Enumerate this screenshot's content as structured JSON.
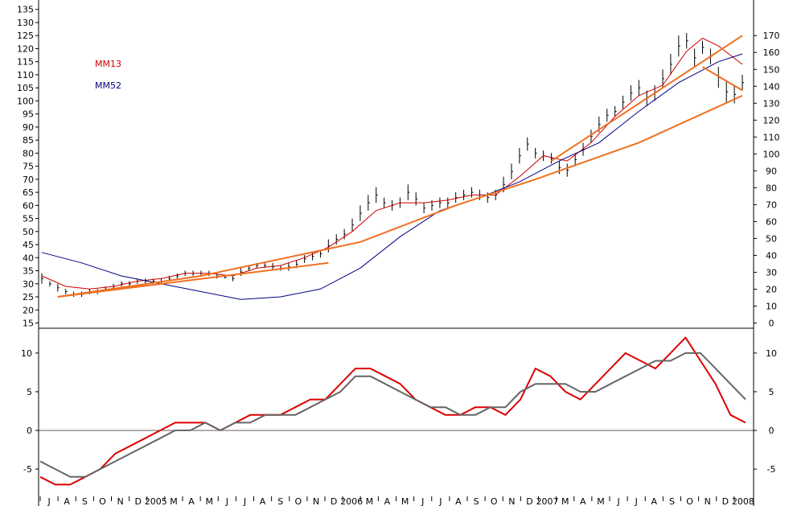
{
  "chart_data": {
    "type": "line",
    "main_panel": {
      "left_axis_ticks": [
        135,
        130,
        125,
        120,
        115,
        110,
        105,
        100,
        95,
        90,
        85,
        80,
        75,
        70,
        65,
        60,
        55,
        50,
        45,
        40,
        35,
        30,
        25,
        20,
        15
      ],
      "right_axis_ticks": [
        170,
        160,
        150,
        140,
        130,
        120,
        110,
        100,
        90,
        80,
        70,
        60,
        50,
        40,
        30,
        20,
        10,
        0
      ],
      "ylim": [
        13,
        138
      ],
      "legend": [
        {
          "name": "MM13",
          "color": "#cc0000"
        },
        {
          "name": "MM52",
          "color": "#000080"
        }
      ],
      "price_bars_weekly": [
        [
          0,
          30,
          34
        ],
        [
          2,
          29,
          31
        ],
        [
          4,
          27,
          30
        ],
        [
          6,
          26,
          28
        ],
        [
          8,
          25,
          27
        ],
        [
          10,
          25,
          27
        ],
        [
          12,
          26,
          28
        ],
        [
          14,
          26,
          28
        ],
        [
          16,
          27,
          29
        ],
        [
          18,
          28,
          30
        ],
        [
          20,
          29,
          31
        ],
        [
          22,
          29,
          31
        ],
        [
          24,
          30,
          32
        ],
        [
          26,
          30,
          32
        ],
        [
          28,
          30,
          32
        ],
        [
          30,
          30,
          32
        ],
        [
          32,
          31,
          33
        ],
        [
          34,
          32,
          34
        ],
        [
          36,
          33,
          35
        ],
        [
          38,
          33,
          35
        ],
        [
          40,
          33,
          35
        ],
        [
          42,
          33,
          35
        ],
        [
          44,
          32,
          34
        ],
        [
          46,
          32,
          33
        ],
        [
          48,
          31,
          33
        ],
        [
          50,
          33,
          36
        ],
        [
          52,
          35,
          37
        ],
        [
          54,
          36,
          38
        ],
        [
          56,
          36,
          38
        ],
        [
          58,
          35,
          38
        ],
        [
          60,
          35,
          37
        ],
        [
          62,
          35,
          38
        ],
        [
          64,
          36,
          39
        ],
        [
          66,
          38,
          41
        ],
        [
          68,
          39,
          42
        ],
        [
          70,
          40,
          43
        ],
        [
          72,
          42,
          47
        ],
        [
          74,
          45,
          49
        ],
        [
          76,
          47,
          51
        ],
        [
          78,
          50,
          55
        ],
        [
          80,
          54,
          60
        ],
        [
          82,
          58,
          64
        ],
        [
          84,
          61,
          67
        ],
        [
          86,
          59,
          63
        ],
        [
          88,
          58,
          62
        ],
        [
          90,
          59,
          63
        ],
        [
          92,
          62,
          68
        ],
        [
          94,
          60,
          65
        ],
        [
          96,
          57,
          61
        ],
        [
          98,
          58,
          62
        ],
        [
          100,
          59,
          63
        ],
        [
          102,
          59,
          63
        ],
        [
          104,
          61,
          65
        ],
        [
          106,
          62,
          66
        ],
        [
          108,
          63,
          67
        ],
        [
          110,
          62,
          66
        ],
        [
          112,
          61,
          65
        ],
        [
          114,
          62,
          66
        ],
        [
          116,
          65,
          71
        ],
        [
          118,
          70,
          76
        ],
        [
          120,
          76,
          82
        ],
        [
          122,
          81,
          86
        ],
        [
          124,
          78,
          82
        ],
        [
          126,
          77,
          81
        ],
        [
          128,
          76,
          80
        ],
        [
          130,
          72,
          77
        ],
        [
          132,
          71,
          76
        ],
        [
          134,
          75,
          80
        ],
        [
          136,
          79,
          84
        ],
        [
          138,
          84,
          89
        ],
        [
          140,
          88,
          94
        ],
        [
          142,
          92,
          97
        ],
        [
          144,
          94,
          98
        ],
        [
          146,
          97,
          102
        ],
        [
          148,
          100,
          106
        ],
        [
          150,
          102,
          108
        ],
        [
          152,
          98,
          104
        ],
        [
          154,
          100,
          106
        ],
        [
          156,
          105,
          112
        ],
        [
          158,
          110,
          118
        ],
        [
          160,
          117,
          125
        ],
        [
          162,
          120,
          126
        ],
        [
          164,
          113,
          120
        ],
        [
          166,
          118,
          123
        ],
        [
          168,
          114,
          120
        ],
        [
          170,
          105,
          113
        ],
        [
          172,
          99,
          108
        ],
        [
          174,
          99,
          106
        ],
        [
          176,
          104,
          110
        ]
      ],
      "ma13": [
        [
          0,
          33
        ],
        [
          6,
          29
        ],
        [
          12,
          28
        ],
        [
          18,
          29
        ],
        [
          24,
          31
        ],
        [
          30,
          32
        ],
        [
          36,
          34
        ],
        [
          42,
          34
        ],
        [
          48,
          33
        ],
        [
          54,
          36
        ],
        [
          60,
          37
        ],
        [
          66,
          40
        ],
        [
          72,
          44
        ],
        [
          78,
          50
        ],
        [
          84,
          58
        ],
        [
          90,
          61
        ],
        [
          96,
          61
        ],
        [
          102,
          62
        ],
        [
          108,
          64
        ],
        [
          114,
          64
        ],
        [
          120,
          71
        ],
        [
          126,
          79
        ],
        [
          132,
          77
        ],
        [
          138,
          84
        ],
        [
          144,
          94
        ],
        [
          150,
          102
        ],
        [
          156,
          106
        ],
        [
          162,
          119
        ],
        [
          166,
          124
        ],
        [
          170,
          121
        ],
        [
          176,
          114
        ]
      ],
      "ma52": [
        [
          0,
          42
        ],
        [
          10,
          38
        ],
        [
          20,
          33
        ],
        [
          30,
          30
        ],
        [
          40,
          27
        ],
        [
          50,
          24
        ],
        [
          60,
          25
        ],
        [
          70,
          28
        ],
        [
          80,
          36
        ],
        [
          90,
          48
        ],
        [
          100,
          58
        ],
        [
          110,
          63
        ],
        [
          120,
          69
        ],
        [
          130,
          77
        ],
        [
          140,
          84
        ],
        [
          150,
          96
        ],
        [
          160,
          107
        ],
        [
          170,
          115
        ],
        [
          176,
          118
        ]
      ],
      "trendlines": [
        {
          "points": [
            [
              4,
              25
            ],
            [
              72,
              38
            ]
          ]
        },
        {
          "points": [
            [
              4,
              25
            ],
            [
              40,
              33
            ],
            [
              80,
              46
            ],
            [
              104,
              60
            ],
            [
              124,
              70
            ],
            [
              150,
              84
            ],
            [
              176,
              102
            ]
          ]
        },
        {
          "points": [
            [
              128,
              77
            ],
            [
              176,
              125
            ]
          ]
        },
        {
          "points": [
            [
              166,
              113
            ],
            [
              176,
              104
            ]
          ]
        }
      ]
    },
    "oscillator_panel": {
      "left_axis_ticks": [
        10,
        5,
        0,
        -5
      ],
      "right_axis_ticks": [
        10,
        5,
        0,
        -5
      ],
      "ylim": [
        -8,
        13
      ],
      "series": [
        {
          "name": "fast",
          "color": "#dd0000",
          "points": [
            [
              0,
              -6
            ],
            [
              4,
              -7
            ],
            [
              8,
              -7
            ],
            [
              12,
              -6
            ],
            [
              16,
              -5
            ],
            [
              20,
              -3
            ],
            [
              24,
              -2
            ],
            [
              28,
              -1
            ],
            [
              32,
              0
            ],
            [
              36,
              1
            ],
            [
              40,
              1
            ],
            [
              44,
              1
            ],
            [
              48,
              0
            ],
            [
              52,
              1
            ],
            [
              56,
              2
            ],
            [
              60,
              2
            ],
            [
              64,
              2
            ],
            [
              68,
              3
            ],
            [
              72,
              4
            ],
            [
              76,
              4
            ],
            [
              80,
              6
            ],
            [
              84,
              8
            ],
            [
              88,
              8
            ],
            [
              92,
              7
            ],
            [
              96,
              6
            ],
            [
              100,
              4
            ],
            [
              104,
              3
            ],
            [
              108,
              2
            ],
            [
              112,
              2
            ],
            [
              116,
              3
            ],
            [
              120,
              3
            ],
            [
              124,
              2
            ],
            [
              128,
              4
            ],
            [
              132,
              8
            ],
            [
              136,
              7
            ],
            [
              140,
              5
            ],
            [
              144,
              4
            ],
            [
              148,
              6
            ],
            [
              152,
              8
            ],
            [
              156,
              10
            ],
            [
              160,
              9
            ],
            [
              164,
              8
            ],
            [
              168,
              10
            ],
            [
              172,
              12
            ],
            [
              176,
              9
            ],
            [
              180,
              6
            ],
            [
              184,
              2
            ],
            [
              188,
              1
            ]
          ]
        },
        {
          "name": "slow",
          "color": "#666666",
          "points": [
            [
              0,
              -4
            ],
            [
              4,
              -5
            ],
            [
              8,
              -6
            ],
            [
              12,
              -6
            ],
            [
              16,
              -5
            ],
            [
              20,
              -4
            ],
            [
              24,
              -3
            ],
            [
              28,
              -2
            ],
            [
              32,
              -1
            ],
            [
              36,
              0
            ],
            [
              40,
              0
            ],
            [
              44,
              1
            ],
            [
              48,
              0
            ],
            [
              52,
              1
            ],
            [
              56,
              1
            ],
            [
              60,
              2
            ],
            [
              64,
              2
            ],
            [
              68,
              2
            ],
            [
              72,
              3
            ],
            [
              76,
              4
            ],
            [
              80,
              5
            ],
            [
              84,
              7
            ],
            [
              88,
              7
            ],
            [
              92,
              6
            ],
            [
              96,
              5
            ],
            [
              100,
              4
            ],
            [
              104,
              3
            ],
            [
              108,
              3
            ],
            [
              112,
              2
            ],
            [
              116,
              2
            ],
            [
              120,
              3
            ],
            [
              124,
              3
            ],
            [
              128,
              5
            ],
            [
              132,
              6
            ],
            [
              136,
              6
            ],
            [
              140,
              6
            ],
            [
              144,
              5
            ],
            [
              148,
              5
            ],
            [
              152,
              6
            ],
            [
              156,
              7
            ],
            [
              160,
              8
            ],
            [
              164,
              9
            ],
            [
              168,
              9
            ],
            [
              172,
              10
            ],
            [
              176,
              10
            ],
            [
              180,
              8
            ],
            [
              184,
              6
            ],
            [
              188,
              4
            ]
          ]
        }
      ]
    },
    "x_axis": {
      "tick_labels": [
        "J",
        "A",
        "S",
        "O",
        "N",
        "D",
        "2005",
        "M",
        "A",
        "M",
        "J",
        "J",
        "A",
        "S",
        "O",
        "N",
        "D",
        "2006",
        "M",
        "A",
        "M",
        "J",
        "J",
        "A",
        "S",
        "O",
        "N",
        "D",
        "2007",
        "M",
        "A",
        "M",
        "J",
        "J",
        "A",
        "S",
        "O",
        "N",
        "D",
        "2008"
      ]
    }
  }
}
